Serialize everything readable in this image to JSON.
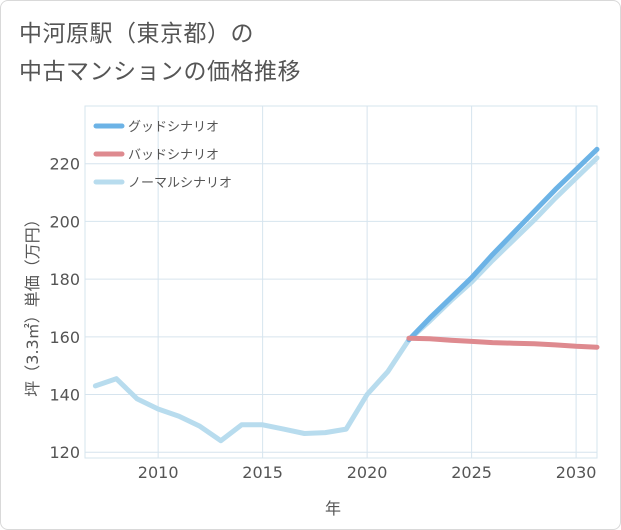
{
  "title_lines": [
    "中河原駅（東京都）の",
    "中古マンションの価格推移"
  ],
  "chart_data": {
    "type": "line",
    "title": "中河原駅（東京都）の中古マンションの価格推移",
    "xlabel": "年",
    "ylabel": "坪（3.3㎡）単価（万円）",
    "xlim": [
      2006.5,
      2031
    ],
    "ylim": [
      118,
      240
    ],
    "x_ticks": [
      2010,
      2015,
      2020,
      2025,
      2030
    ],
    "y_ticks": [
      120,
      140,
      160,
      180,
      200,
      220
    ],
    "grid": true,
    "legend_position": "top-left",
    "series": [
      {
        "name": "グッドシナリオ",
        "color": "#6cb3e6",
        "x": [
          2022,
          2023,
          2024,
          2025,
          2026,
          2027,
          2028,
          2029,
          2030,
          2031
        ],
        "y": [
          159,
          166.5,
          173.5,
          180.5,
          188.5,
          196,
          203.5,
          211,
          218,
          225
        ]
      },
      {
        "name": "バッドシナリオ",
        "color": "#de8a8f",
        "x": [
          2022,
          2023,
          2024,
          2025,
          2026,
          2027,
          2028,
          2029,
          2030,
          2031
        ],
        "y": [
          159.5,
          159.3,
          158.8,
          158.4,
          158,
          157.8,
          157.6,
          157.2,
          156.7,
          156.4
        ]
      },
      {
        "name": "ノーマルシナリオ",
        "color": "#b8dcee",
        "x": [
          2007,
          2008,
          2009,
          2010,
          2011,
          2012,
          2013,
          2014,
          2015,
          2016,
          2017,
          2018,
          2019,
          2020,
          2021,
          2022,
          2023,
          2024,
          2025,
          2026,
          2027,
          2028,
          2029,
          2030,
          2031
        ],
        "y": [
          143,
          145.5,
          138.5,
          135,
          132.5,
          129,
          124,
          129.5,
          129.5,
          128,
          126.5,
          126.8,
          128,
          140,
          148,
          159,
          165.5,
          172.5,
          179,
          186.5,
          193.5,
          200.5,
          208,
          215,
          222
        ]
      }
    ]
  }
}
